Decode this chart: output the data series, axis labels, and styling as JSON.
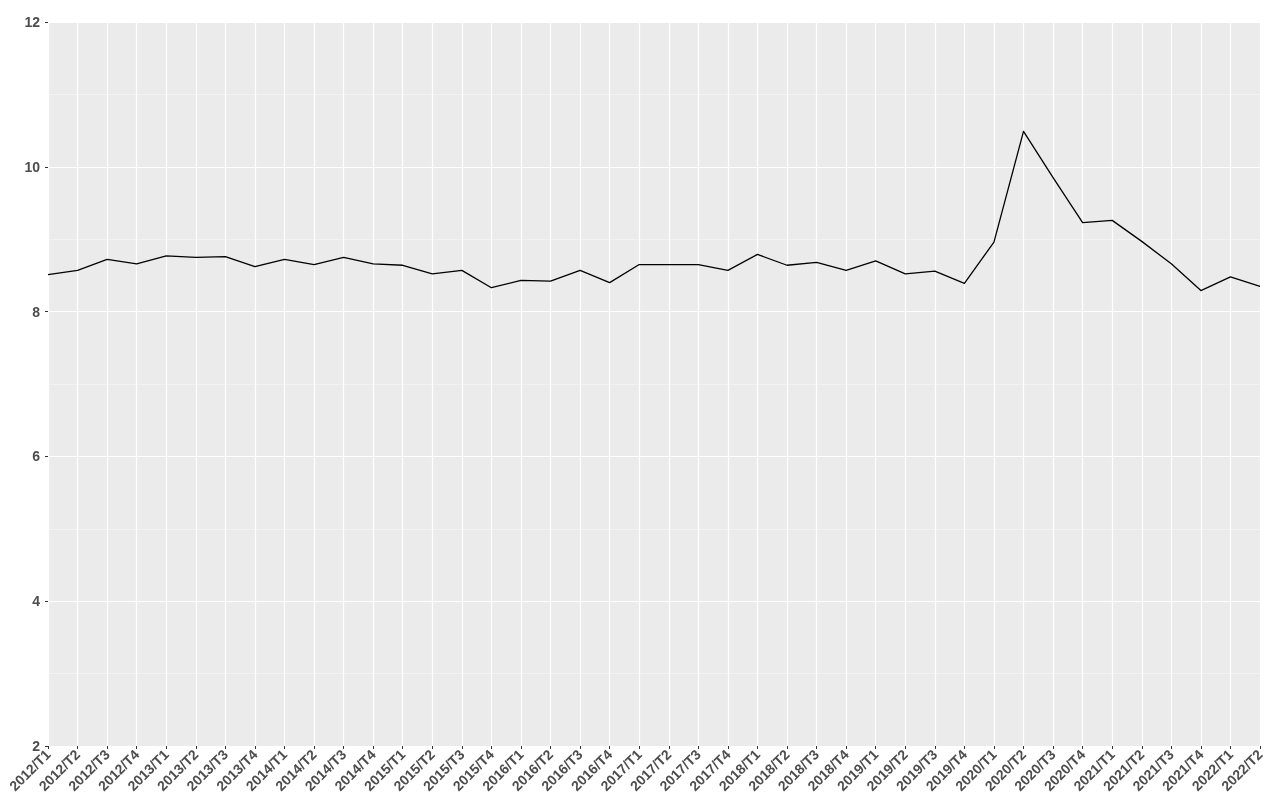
{
  "chart_data": {
    "type": "line",
    "categories": [
      "2012/T1",
      "2012/T2",
      "2012/T3",
      "2012/T4",
      "2013/T1",
      "2013/T2",
      "2013/T3",
      "2013/T4",
      "2014/T1",
      "2014/T2",
      "2014/T3",
      "2014/T4",
      "2015/T1",
      "2015/T2",
      "2015/T3",
      "2015/T4",
      "2016/T1",
      "2016/T2",
      "2016/T3",
      "2016/T4",
      "2017/T1",
      "2017/T2",
      "2017/T3",
      "2017/T4",
      "2018/T1",
      "2018/T2",
      "2018/T3",
      "2018/T4",
      "2019/T1",
      "2019/T2",
      "2019/T3",
      "2019/T4",
      "2020/T1",
      "2020/T2",
      "2020/T3",
      "2020/T4",
      "2021/T1",
      "2021/T2",
      "2021/T3",
      "2021/T4",
      "2022/T1",
      "2022/T2"
    ],
    "series": [
      {
        "color": "#000000",
        "values": [
          8.51,
          8.57,
          8.72,
          8.66,
          8.77,
          8.75,
          8.76,
          8.62,
          8.72,
          8.65,
          8.75,
          8.66,
          8.64,
          8.52,
          8.57,
          8.33,
          8.43,
          8.42,
          8.57,
          8.4,
          8.65,
          8.65,
          8.65,
          8.57,
          8.79,
          8.64,
          8.68,
          8.57,
          8.7,
          8.52,
          8.56,
          8.39,
          8.96,
          10.49,
          9.85,
          9.23,
          9.26,
          8.97,
          8.66,
          8.29,
          8.48,
          8.35
        ]
      }
    ],
    "ylim": [
      2,
      12
    ],
    "yticks": [
      2,
      4,
      6,
      8,
      10,
      12
    ],
    "grid": true,
    "marker": "none",
    "line_style": "solid"
  }
}
